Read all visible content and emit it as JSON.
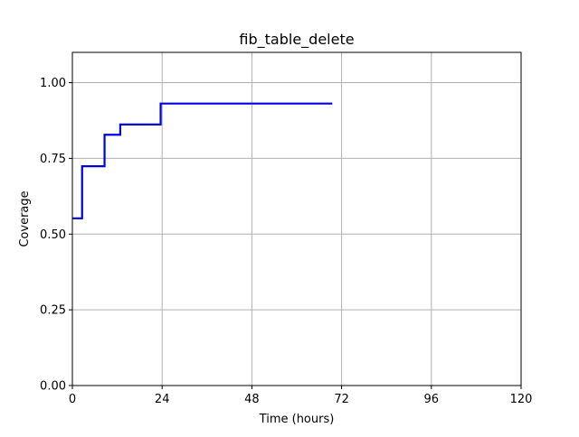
{
  "chart_data": {
    "type": "line",
    "title": "fib_table_delete",
    "xlabel": "Time (hours)",
    "ylabel": "Coverage",
    "xlim": [
      0,
      120
    ],
    "ylim": [
      0,
      1.1
    ],
    "xticks": [
      0,
      24,
      48,
      72,
      96,
      120
    ],
    "xtick_labels": [
      "0",
      "24",
      "48",
      "72",
      "96",
      "120"
    ],
    "yticks": [
      0,
      0.25,
      0.5,
      0.75,
      1.0
    ],
    "ytick_labels": [
      "0.00",
      "0.25",
      "0.50",
      "0.75",
      "1.00"
    ],
    "grid": true,
    "series": [
      {
        "color": "#0000dd",
        "step": true,
        "x": [
          0,
          2.6,
          8.6,
          12.8,
          23.6,
          69.5
        ],
        "y": [
          0.552,
          0.724,
          0.828,
          0.862,
          0.931,
          0.931
        ]
      }
    ]
  }
}
